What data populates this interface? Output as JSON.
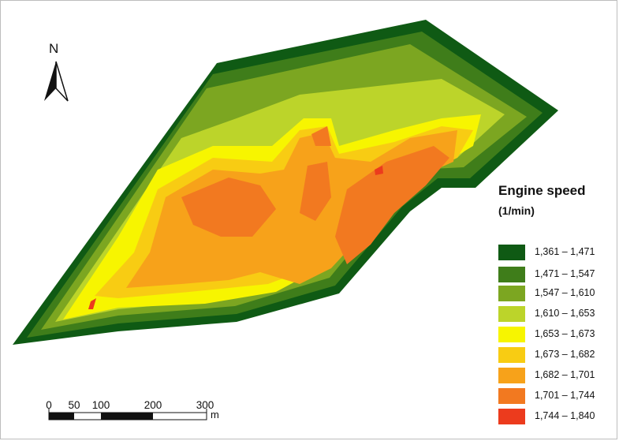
{
  "north_label": "N",
  "legend": {
    "title_line1": "Engine speed",
    "title_line2": "(1/min)",
    "items": [
      {
        "label": "1,361 – 1,471",
        "color": "#0f5a14"
      },
      {
        "label": "1,471 – 1,547",
        "color": "#3f7d1a"
      },
      {
        "label": "1,547 – 1,610",
        "color": "#7ca621"
      },
      {
        "label": "1,610 – 1,653",
        "color": "#bcd42a"
      },
      {
        "label": "1,653 – 1,673",
        "color": "#f7f500"
      },
      {
        "label": "1,673 – 1,682",
        "color": "#f8cc13"
      },
      {
        "label": "1,682 – 1,701",
        "color": "#f7a21a"
      },
      {
        "label": "1,701 – 1,744",
        "color": "#f27920"
      },
      {
        "label": "1,744 – 1,840",
        "color": "#ec3b1d"
      }
    ]
  },
  "scale_bar": {
    "labels": [
      "0",
      "50",
      "100",
      "200",
      "300"
    ],
    "unit": "m"
  }
}
